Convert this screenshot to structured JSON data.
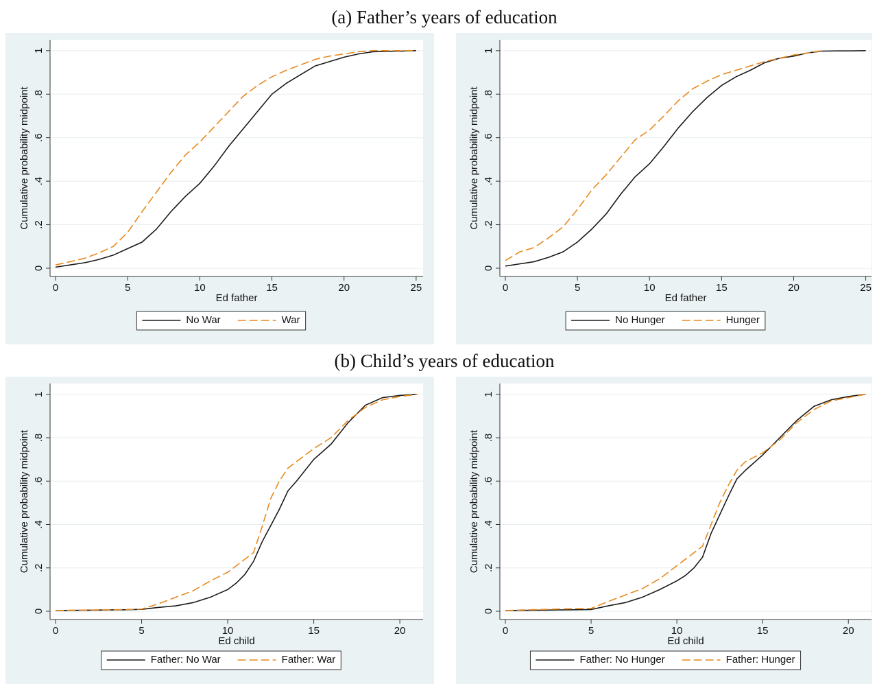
{
  "headings": [
    "(a) Father’s years of education",
    "(b) Child’s years of education"
  ],
  "chart_data": [
    {
      "type": "line",
      "xlabel": "Ed father",
      "ylabel": "Cumulative probability midpoint",
      "xlim": [
        -0.38,
        25.48
      ],
      "ylim": [
        -0.038,
        1.05
      ],
      "xticks": [
        0,
        5,
        10,
        15,
        20,
        25
      ],
      "yticks": [
        0,
        {
          "value": 0.2,
          "label": ".2"
        },
        {
          "value": 0.4,
          "label": ".4"
        },
        {
          "value": 0.6,
          "label": ".6"
        },
        {
          "value": 0.8,
          "label": ".8"
        },
        1
      ],
      "grid": true,
      "legend": "bottom",
      "series": [
        {
          "name": "No War",
          "color": "#1a1a1a",
          "linestyle": "solid",
          "x": [
            0,
            1,
            2,
            3,
            4,
            5,
            6,
            7,
            8,
            9,
            10,
            11,
            12,
            13,
            14,
            15,
            16,
            17,
            18,
            19,
            20,
            21,
            22,
            23,
            24,
            25
          ],
          "values": [
            0.005,
            0.015,
            0.025,
            0.04,
            0.06,
            0.09,
            0.12,
            0.18,
            0.26,
            0.33,
            0.39,
            0.47,
            0.56,
            0.64,
            0.72,
            0.8,
            0.85,
            0.89,
            0.93,
            0.95,
            0.97,
            0.985,
            0.995,
            0.997,
            0.998,
            1
          ]
        },
        {
          "name": "War",
          "color": "#e8891f",
          "linestyle": "dashed",
          "x": [
            0,
            1,
            2,
            3,
            4,
            5,
            6,
            7,
            8,
            9,
            10,
            11,
            12,
            13,
            14,
            15,
            16,
            17,
            18,
            19,
            20,
            21,
            22,
            23,
            24,
            25
          ],
          "values": [
            0.015,
            0.03,
            0.045,
            0.07,
            0.1,
            0.165,
            0.26,
            0.35,
            0.44,
            0.52,
            0.58,
            0.65,
            0.72,
            0.79,
            0.84,
            0.88,
            0.91,
            0.935,
            0.96,
            0.975,
            0.985,
            0.995,
            1,
            1,
            1,
            1
          ]
        }
      ]
    },
    {
      "type": "line",
      "xlabel": "Ed father",
      "ylabel": "Cumulative probability midpoint",
      "xlim": [
        -0.38,
        25.4
      ],
      "ylim": [
        -0.038,
        1.05
      ],
      "xticks": [
        0,
        5,
        10,
        15,
        20,
        25
      ],
      "yticks": [
        0,
        {
          "value": 0.2,
          "label": ".2"
        },
        {
          "value": 0.4,
          "label": ".4"
        },
        {
          "value": 0.6,
          "label": ".6"
        },
        {
          "value": 0.8,
          "label": ".8"
        },
        1
      ],
      "grid": true,
      "legend": "bottom",
      "series": [
        {
          "name": "No Hunger",
          "color": "#1a1a1a",
          "linestyle": "solid",
          "x": [
            0,
            1,
            2,
            3,
            4,
            5,
            6,
            7,
            8,
            9,
            10,
            11,
            12,
            13,
            14,
            15,
            16,
            17,
            18,
            19,
            20,
            21,
            22,
            23,
            24,
            25
          ],
          "values": [
            0.01,
            0.02,
            0.03,
            0.05,
            0.075,
            0.12,
            0.18,
            0.25,
            0.34,
            0.42,
            0.48,
            0.56,
            0.645,
            0.72,
            0.785,
            0.84,
            0.88,
            0.91,
            0.945,
            0.965,
            0.975,
            0.99,
            0.998,
            0.999,
            0.999,
            1
          ]
        },
        {
          "name": "Hunger",
          "color": "#e8891f",
          "linestyle": "dashed",
          "x": [
            0,
            1,
            2,
            3,
            4,
            5,
            6,
            7,
            8,
            9,
            10,
            11,
            12,
            13,
            14,
            15,
            16,
            17,
            18,
            19,
            20,
            21,
            22
          ],
          "values": [
            0.035,
            0.075,
            0.095,
            0.14,
            0.19,
            0.27,
            0.36,
            0.43,
            0.51,
            0.59,
            0.635,
            0.7,
            0.77,
            0.825,
            0.86,
            0.89,
            0.91,
            0.93,
            0.95,
            0.965,
            0.98,
            0.99,
            1
          ]
        }
      ]
    },
    {
      "type": "line",
      "xlabel": "Ed child",
      "ylabel": "Cumulative probability midpoint",
      "xlim": [
        -0.32,
        21.35
      ],
      "ylim": [
        -0.038,
        1.05
      ],
      "xticks": [
        0,
        5,
        10,
        15,
        20
      ],
      "yticks": [
        0,
        {
          "value": 0.2,
          "label": ".2"
        },
        {
          "value": 0.4,
          "label": ".4"
        },
        {
          "value": 0.6,
          "label": ".6"
        },
        {
          "value": 0.8,
          "label": ".8"
        },
        1
      ],
      "grid": true,
      "legend": "bottom",
      "series": [
        {
          "name": "Father: No War",
          "color": "#1a1a1a",
          "linestyle": "solid",
          "x": [
            0,
            1,
            2,
            3,
            4,
            5,
            6,
            7,
            8,
            9,
            10,
            10.5,
            11,
            11.5,
            12,
            13,
            13.5,
            14,
            15,
            16,
            17,
            18,
            19,
            20,
            21
          ],
          "values": [
            0.003,
            0.004,
            0.005,
            0.006,
            0.007,
            0.009,
            0.018,
            0.025,
            0.04,
            0.065,
            0.1,
            0.13,
            0.17,
            0.23,
            0.32,
            0.47,
            0.555,
            0.6,
            0.7,
            0.77,
            0.87,
            0.95,
            0.985,
            0.995,
            1
          ]
        },
        {
          "name": "Father: War",
          "color": "#e8891f",
          "linestyle": "dashed",
          "x": [
            0,
            1,
            2,
            3,
            4,
            5,
            6,
            7,
            8,
            9,
            10,
            11,
            11.5,
            12,
            12.5,
            13,
            13.5,
            14,
            15,
            16,
            17,
            18,
            19,
            20,
            21
          ],
          "values": [
            0.003,
            0.005,
            0.006,
            0.007,
            0.008,
            0.01,
            0.035,
            0.065,
            0.095,
            0.14,
            0.18,
            0.24,
            0.27,
            0.39,
            0.52,
            0.6,
            0.66,
            0.69,
            0.75,
            0.8,
            0.88,
            0.94,
            0.975,
            0.99,
            1
          ]
        }
      ]
    },
    {
      "type": "line",
      "xlabel": "Ed child",
      "ylabel": "Cumulative probability midpoint",
      "xlim": [
        -0.32,
        21.35
      ],
      "ylim": [
        -0.038,
        1.05
      ],
      "xticks": [
        0,
        5,
        10,
        15,
        20
      ],
      "yticks": [
        0,
        {
          "value": 0.2,
          "label": ".2"
        },
        {
          "value": 0.4,
          "label": ".4"
        },
        {
          "value": 0.6,
          "label": ".6"
        },
        {
          "value": 0.8,
          "label": ".8"
        },
        1
      ],
      "grid": true,
      "legend": "bottom",
      "series": [
        {
          "name": "Father: No Hunger",
          "color": "#1a1a1a",
          "linestyle": "solid",
          "x": [
            0,
            1,
            2,
            3,
            4,
            5,
            6,
            7,
            8,
            9,
            10,
            10.5,
            11,
            11.5,
            12,
            13,
            13.5,
            14,
            15,
            16,
            17,
            18,
            19,
            20,
            21
          ],
          "values": [
            0.003,
            0.004,
            0.005,
            0.006,
            0.007,
            0.008,
            0.025,
            0.04,
            0.065,
            0.1,
            0.14,
            0.165,
            0.2,
            0.25,
            0.36,
            0.53,
            0.61,
            0.65,
            0.72,
            0.8,
            0.88,
            0.945,
            0.975,
            0.99,
            1
          ]
        },
        {
          "name": "Father: Hunger",
          "color": "#e8891f",
          "linestyle": "dashed",
          "x": [
            0,
            1,
            2,
            3,
            4,
            5,
            6,
            7,
            8,
            9,
            10,
            11,
            11.5,
            12,
            12.5,
            13,
            13.5,
            14,
            15,
            16,
            17,
            18,
            19,
            20,
            21
          ],
          "values": [
            0.003,
            0.006,
            0.008,
            0.01,
            0.012,
            0.013,
            0.045,
            0.075,
            0.105,
            0.15,
            0.21,
            0.27,
            0.3,
            0.4,
            0.5,
            0.58,
            0.65,
            0.69,
            0.73,
            0.79,
            0.87,
            0.93,
            0.97,
            0.985,
            1
          ]
        }
      ]
    }
  ]
}
